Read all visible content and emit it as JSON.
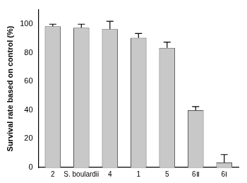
{
  "chart_data": {
    "type": "bar",
    "y_label": "Survival rate based on control (%)",
    "categories": [
      "2",
      "S. boulardii",
      "4",
      "1",
      "5",
      "6Ⅱ",
      "6Ⅰ"
    ],
    "values": [
      98.5,
      97.5,
      96.5,
      90.5,
      83.5,
      40,
      3.5
    ],
    "errors": [
      1.5,
      2.5,
      5.5,
      3,
      4,
      2.5,
      5.5
    ],
    "color": "#c8c8c8",
    "ylim": [
      0,
      110
    ],
    "yticks": [
      0,
      20,
      40,
      60,
      80,
      100
    ],
    "grid": false
  }
}
